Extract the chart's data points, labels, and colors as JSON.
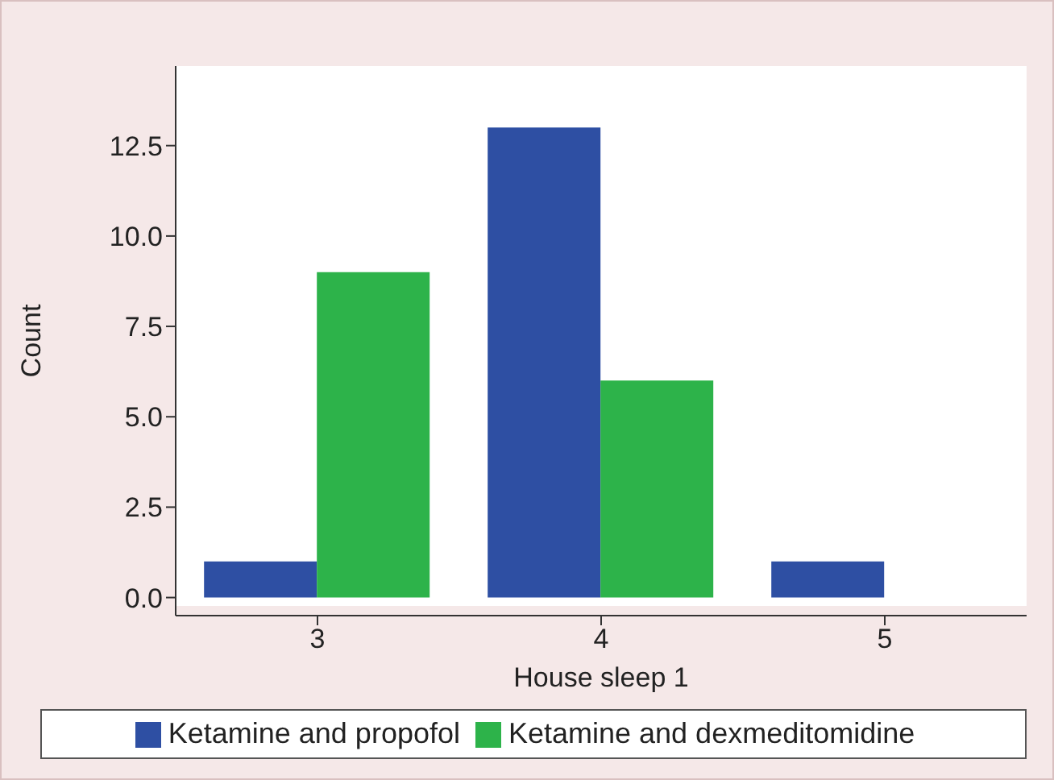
{
  "chart_data": {
    "type": "bar",
    "xlabel": "House sleep 1",
    "ylabel": "Count",
    "categories": [
      "3",
      "4",
      "5"
    ],
    "series": [
      {
        "name": "Ketamine and propofol",
        "color": "#2e4fa3",
        "values": [
          1,
          13,
          1
        ]
      },
      {
        "name": "Ketamine and dexmeditomidine",
        "color": "#2db34a",
        "values": [
          9,
          6,
          0
        ]
      }
    ],
    "ylim": [
      -0.5,
      14.7
    ],
    "yticks": [
      {
        "value": 0,
        "label": "0.0"
      },
      {
        "value": 2.5,
        "label": "2.5"
      },
      {
        "value": 5,
        "label": "5.0"
      },
      {
        "value": 7.5,
        "label": "7.5"
      },
      {
        "value": 10,
        "label": "10.0"
      },
      {
        "value": 12.5,
        "label": "12.5"
      }
    ],
    "grid": false,
    "legend": "bottom"
  }
}
